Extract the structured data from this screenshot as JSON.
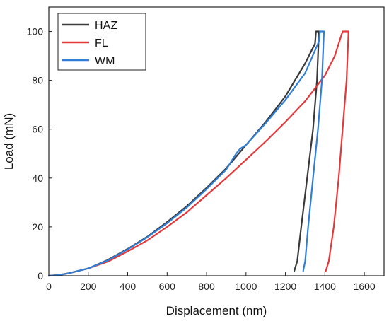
{
  "chart_data": {
    "type": "line",
    "title": "",
    "xlabel": "Displacement (nm)",
    "ylabel": "Load (mN)",
    "xlim": [
      0,
      1700
    ],
    "ylim": [
      0,
      110
    ],
    "xticks": [
      "0",
      "200",
      "400",
      "600",
      "800",
      "1000",
      "1200",
      "1400",
      "1600"
    ],
    "yticks": [
      "0",
      "20",
      "40",
      "60",
      "80",
      "100"
    ],
    "grid": false,
    "legend_position": "top-left",
    "series": [
      {
        "name": "HAZ",
        "color": "#3a3a3a",
        "points": [
          [
            0,
            0
          ],
          [
            50,
            0.3
          ],
          [
            100,
            1
          ],
          [
            200,
            3
          ],
          [
            300,
            6.5
          ],
          [
            400,
            11
          ],
          [
            500,
            16
          ],
          [
            600,
            22
          ],
          [
            700,
            28.5
          ],
          [
            800,
            36
          ],
          [
            900,
            44
          ],
          [
            1000,
            53.5
          ],
          [
            1100,
            63
          ],
          [
            1200,
            73.5
          ],
          [
            1300,
            87
          ],
          [
            1350,
            95
          ],
          [
            1355,
            100
          ],
          [
            1370,
            100
          ],
          [
            1360,
            80
          ],
          [
            1340,
            60
          ],
          [
            1310,
            40
          ],
          [
            1280,
            20
          ],
          [
            1260,
            6
          ],
          [
            1245,
            2
          ]
        ]
      },
      {
        "name": "FL",
        "color": "#e5383b",
        "points": [
          [
            0,
            0
          ],
          [
            50,
            0.3
          ],
          [
            100,
            1
          ],
          [
            200,
            3
          ],
          [
            300,
            5.8
          ],
          [
            400,
            10
          ],
          [
            500,
            14.5
          ],
          [
            600,
            20
          ],
          [
            700,
            26
          ],
          [
            800,
            33
          ],
          [
            900,
            40
          ],
          [
            1000,
            47.5
          ],
          [
            1100,
            55
          ],
          [
            1200,
            63
          ],
          [
            1300,
            71.5
          ],
          [
            1400,
            82
          ],
          [
            1450,
            90
          ],
          [
            1490,
            100
          ],
          [
            1520,
            100
          ],
          [
            1510,
            80
          ],
          [
            1490,
            60
          ],
          [
            1470,
            40
          ],
          [
            1445,
            20
          ],
          [
            1420,
            6
          ],
          [
            1405,
            2
          ]
        ]
      },
      {
        "name": "WM",
        "color": "#2f7fd8",
        "points": [
          [
            0,
            0
          ],
          [
            50,
            0.3
          ],
          [
            100,
            1
          ],
          [
            200,
            3
          ],
          [
            300,
            6.3
          ],
          [
            400,
            10.8
          ],
          [
            500,
            15.8
          ],
          [
            600,
            21.5
          ],
          [
            700,
            28
          ],
          [
            800,
            35.5
          ],
          [
            900,
            43.5
          ],
          [
            950,
            50
          ],
          [
            970,
            52
          ],
          [
            1000,
            53.5
          ],
          [
            1100,
            62.5
          ],
          [
            1200,
            72
          ],
          [
            1300,
            83
          ],
          [
            1370,
            96
          ],
          [
            1375,
            100
          ],
          [
            1395,
            100
          ],
          [
            1385,
            80
          ],
          [
            1365,
            60
          ],
          [
            1340,
            40
          ],
          [
            1315,
            20
          ],
          [
            1300,
            6
          ],
          [
            1290,
            2
          ]
        ]
      }
    ]
  }
}
